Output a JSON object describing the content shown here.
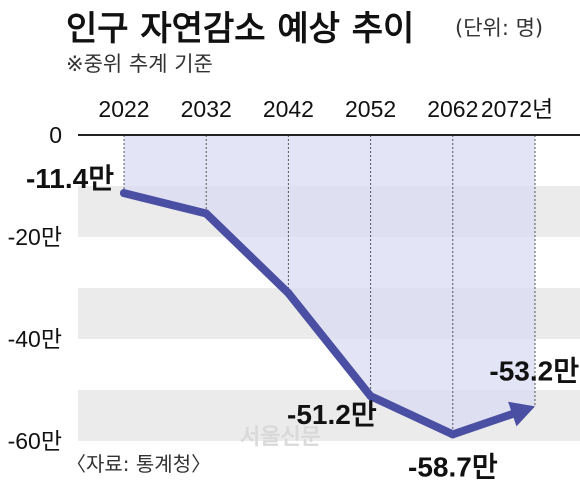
{
  "header": {
    "title": "인구 자연감소 예상 추이",
    "unit": "(단위: 명)",
    "subtitle": "※중위 추계 기준"
  },
  "source": "〈자료: 통계청〉",
  "watermark": "서울신문",
  "colors": {
    "line": "#4a4fa3",
    "area": "#d9dcf3",
    "band": "#ebebeb",
    "axis": "#222222"
  },
  "chart_data": {
    "type": "line",
    "x": [
      2022,
      2032,
      2042,
      2052,
      2062,
      2072
    ],
    "x_tick_labels": [
      "2022",
      "2032",
      "2042",
      "2052",
      "2062",
      "2072년"
    ],
    "y": [
      -11.4,
      -15.4,
      -31.0,
      -51.2,
      -58.7,
      -53.2
    ],
    "y_unit": "만 명",
    "ylim": [
      -64,
      0
    ],
    "y_ticks": [
      0,
      -20,
      -40,
      -60
    ],
    "y_tick_labels": [
      "0",
      "-20만",
      "-40만",
      "-60만"
    ],
    "data_labels": [
      {
        "x": 2022,
        "y": -11.4,
        "text": "-11.4만"
      },
      {
        "x": 2052,
        "y": -51.2,
        "text": "-51.2만"
      },
      {
        "x": 2062,
        "y": -58.7,
        "text": "-58.7만"
      },
      {
        "x": 2072,
        "y": -53.2,
        "text": "-53.2만"
      }
    ],
    "grid_bands": [
      [
        -10,
        -20
      ],
      [
        -30,
        -40
      ],
      [
        -50,
        -60
      ]
    ],
    "end_arrow": true
  }
}
